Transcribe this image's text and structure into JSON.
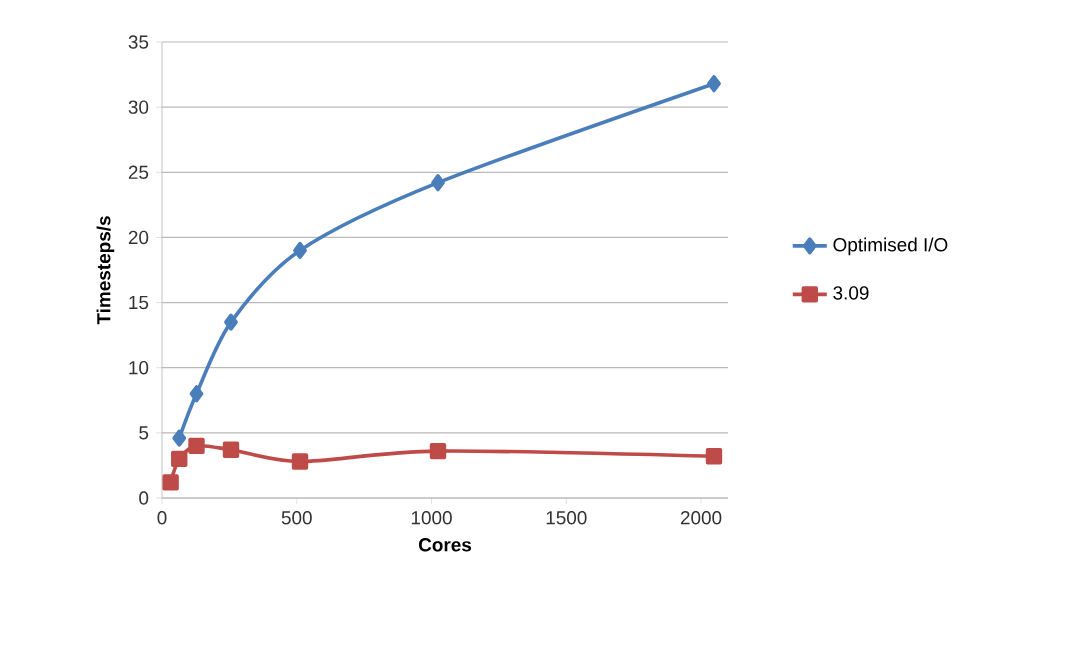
{
  "chart_data": {
    "type": "line",
    "xlabel": "Cores",
    "ylabel": "Timesteps/s",
    "xlim": [
      0,
      2100
    ],
    "xticks": [
      0,
      500,
      1000,
      1500,
      2000
    ],
    "ylim": [
      0,
      35
    ],
    "yticks": [
      0,
      5,
      10,
      15,
      20,
      25,
      30,
      35
    ],
    "grid": "y",
    "legend": "right",
    "series": [
      {
        "name": "Optimised I/O",
        "color": "#4a7ebb",
        "marker": "diamond",
        "x": [
          64,
          128,
          256,
          512,
          1024,
          2048
        ],
        "values": [
          4.6,
          8.0,
          13.5,
          19.0,
          24.2,
          31.8
        ]
      },
      {
        "name": "3.09",
        "color": "#be4b48",
        "marker": "square",
        "x": [
          32,
          64,
          128,
          256,
          512,
          1024,
          2048
        ],
        "values": [
          1.2,
          3.0,
          4.0,
          3.7,
          2.8,
          3.6,
          3.2
        ]
      }
    ]
  }
}
